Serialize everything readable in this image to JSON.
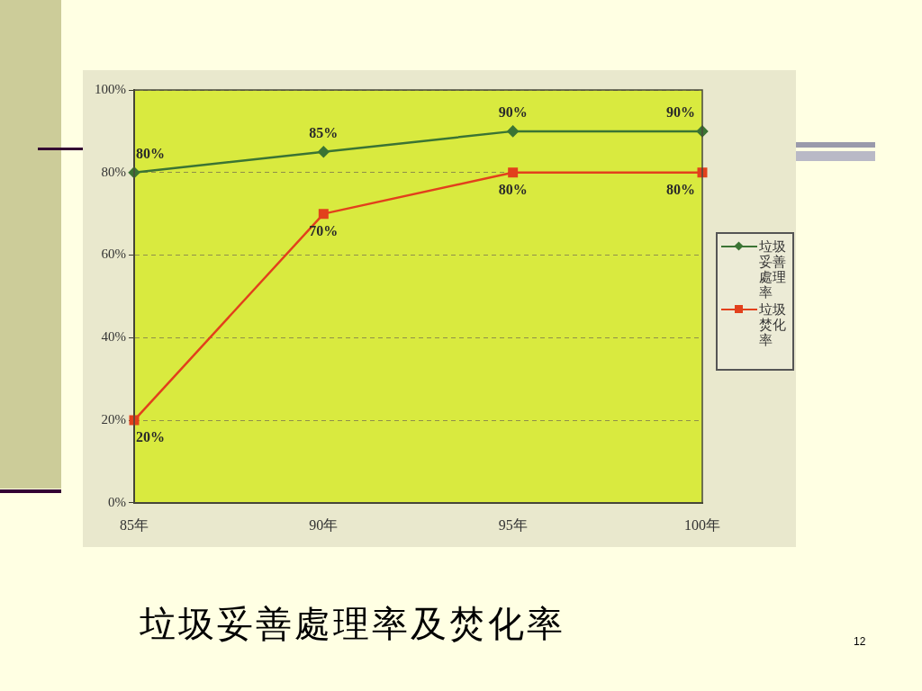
{
  "chart_data": {
    "type": "line",
    "title": "垃圾妥善處理率及焚化率",
    "categories": [
      "85年",
      "90年",
      "95年",
      "100年"
    ],
    "series": [
      {
        "name": "垃圾妥善處理率",
        "color": "#3b7434",
        "marker": "diamond",
        "values": [
          80,
          85,
          90,
          90
        ],
        "value_labels": [
          "80%",
          "85%",
          "90%",
          "90%"
        ]
      },
      {
        "name": "垃圾焚化率",
        "color": "#e2401c",
        "marker": "square",
        "values": [
          20,
          70,
          80,
          80
        ],
        "value_labels": [
          "20%",
          "70%",
          "80%",
          "80%"
        ]
      }
    ],
    "ylim": [
      0,
      100
    ],
    "yticks": [
      {
        "value": 0,
        "label": "0%"
      },
      {
        "value": 20,
        "label": "20%"
      },
      {
        "value": 40,
        "label": "40%"
      },
      {
        "value": 60,
        "label": "60%"
      },
      {
        "value": 80,
        "label": "80%"
      },
      {
        "value": 100,
        "label": "100%"
      }
    ],
    "grid": "y",
    "legend": "right",
    "annotations": [
      "12"
    ]
  }
}
